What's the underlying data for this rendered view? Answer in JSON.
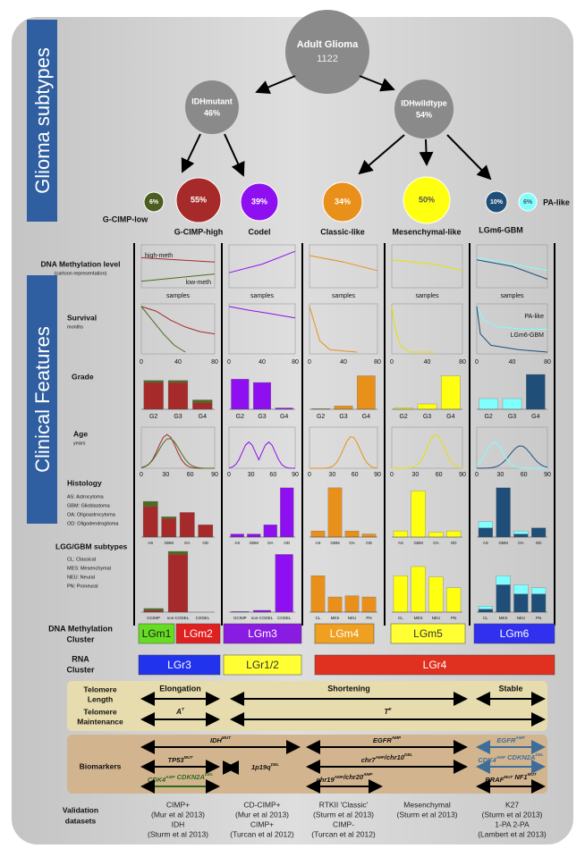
{
  "sidebars": {
    "top": "Glioma subtypes",
    "middle": "Clinical Features"
  },
  "root": {
    "title": "Adult Glioma",
    "count": "1122"
  },
  "branches": [
    {
      "title": "IDHmutant",
      "pct": "46%"
    },
    {
      "title": "IDHwildtype",
      "pct": "54%"
    }
  ],
  "subtypes": [
    {
      "pct": "6%",
      "label": "G-CIMP-low",
      "color": "#4b5d1f"
    },
    {
      "pct": "55%",
      "label": "G-CIMP-high",
      "color": "#a72a2a"
    },
    {
      "pct": "39%",
      "label": "Codel",
      "color": "#8e10f0"
    },
    {
      "pct": "34%",
      "label": "Classic-like",
      "color": "#e8901a"
    },
    {
      "pct": "50%",
      "label": "Mesenchymal-like",
      "color": "#ffff10"
    },
    {
      "pct": "10%",
      "label": "LGm6-GBM",
      "color": "#1f4e79"
    },
    {
      "pct": "6%",
      "label": "PA-like",
      "color": "#80ffff"
    }
  ],
  "row_labels": {
    "methylation": {
      "title": "DNA Methylation level",
      "note": "(cartoon representation)",
      "axis": "samples",
      "high": "high-meth",
      "low": "low-meth"
    },
    "survival": {
      "title": "Survival",
      "unit": "months",
      "ticks": [
        0,
        40,
        80
      ],
      "pa": "PA-like",
      "lgm6": "LGm6-GBM"
    },
    "grade": {
      "title": "Grade",
      "categories": [
        "G2",
        "G3",
        "G4"
      ]
    },
    "age": {
      "title": "Age",
      "unit": "years",
      "ticks": [
        0,
        30,
        60,
        90
      ]
    },
    "histology": {
      "title": "Histology",
      "legend": [
        "AS: Astrocytoma",
        "GBM: Glioblastoma",
        "OA: Oligoastrocytoma",
        "OD: Oligodendroglioma"
      ],
      "categories": [
        "AS",
        "GBM",
        "OA",
        "OD"
      ]
    },
    "lgg": {
      "title": "LGG/GBM subtypes",
      "legend": [
        "CL: Classical",
        "MES: Mesenchymal",
        "NEU: Neural",
        "PN: Proneural"
      ],
      "categories_a": [
        "GCIMP",
        "non-CODEL",
        "CODEL"
      ],
      "categories_b": [
        "CL",
        "MES",
        "NEU",
        "PN"
      ]
    }
  },
  "columns": [
    {
      "grade": [
        {
          "color": "#a72a2a",
          "values": [
            40,
            40,
            10
          ]
        },
        {
          "color": "#4b6d1f",
          "values": [
            3,
            3,
            4
          ]
        }
      ],
      "histology": [
        {
          "color": "#a72a2a",
          "values": [
            50,
            30,
            40,
            20
          ]
        },
        {
          "color": "#4b6d1f",
          "values": [
            8,
            3,
            0,
            0
          ]
        }
      ],
      "lgg": [
        {
          "color": "#a72a2a",
          "values": [
            3,
            95,
            0
          ]
        },
        {
          "color": "#4b6d1f",
          "values": [
            3,
            5,
            0
          ]
        }
      ]
    },
    {
      "grade": [
        {
          "color": "#8e10f0",
          "values": [
            45,
            40,
            2
          ]
        }
      ],
      "histology": [
        {
          "color": "#8e10f0",
          "values": [
            5,
            5,
            20,
            80
          ]
        }
      ],
      "lgg": [
        {
          "color": "#8e10f0",
          "values": [
            1,
            3,
            95
          ]
        }
      ]
    },
    {
      "grade": [
        {
          "color": "#e8901a",
          "values": [
            1,
            5,
            50
          ]
        }
      ],
      "histology": [
        {
          "color": "#e8901a",
          "values": [
            10,
            80,
            10,
            5
          ]
        }
      ],
      "lgg": [
        {
          "color": "#e8901a",
          "values": [
            60,
            25,
            27,
            25
          ]
        }
      ]
    },
    {
      "grade": [
        {
          "color": "#ffff10",
          "values": [
            2,
            8,
            50
          ]
        }
      ],
      "histology": [
        {
          "color": "#ffff10",
          "values": [
            10,
            75,
            8,
            10
          ]
        }
      ],
      "lgg": [
        {
          "color": "#ffff10",
          "values": [
            60,
            75,
            58,
            40
          ]
        }
      ]
    },
    {
      "grade": [
        {
          "color": "#80ffff",
          "values": [
            16,
            16,
            0
          ]
        },
        {
          "color": "#1f4e79",
          "values": [
            0,
            0,
            52
          ]
        }
      ],
      "histology": [
        {
          "color": "#1f4e79",
          "values": [
            15,
            80,
            5,
            15
          ]
        },
        {
          "color": "#80ffff",
          "values": [
            10,
            0,
            5,
            0
          ]
        }
      ],
      "lgg": [
        {
          "color": "#1f4e79",
          "values": [
            5,
            45,
            30,
            30
          ]
        },
        {
          "color": "#80ffff",
          "values": [
            5,
            15,
            15,
            10
          ]
        }
      ]
    }
  ],
  "clusters": {
    "methylation_title": [
      "DNA  Methylation",
      "Cluster"
    ],
    "methylation": [
      {
        "label": "LGm1",
        "color": "#66dd22",
        "text_color": "#222"
      },
      {
        "label": "LGm2",
        "color": "#e02020",
        "text_color": "#fff"
      },
      {
        "label": "LGm3",
        "color": "#8a1be0",
        "text_color": "#fff"
      },
      {
        "label": "LGm4",
        "color": "#f0a020",
        "text_color": "#fff"
      },
      {
        "label": "LGm5",
        "color": "#ffff33",
        "text_color": "#333"
      },
      {
        "label": "LGm6",
        "color": "#3030ee",
        "text_color": "#fff"
      }
    ],
    "rna_title": [
      "RNA",
      "Cluster"
    ],
    "rna": [
      {
        "label": "LGr3",
        "color": "#2233ee",
        "text_color": "#fff"
      },
      {
        "label": "LGr1/2",
        "color": "#ffff33",
        "text_color": "#333"
      },
      {
        "label": "LGr4",
        "color": "#e03020",
        "text_color": "#fff"
      }
    ]
  },
  "telomere": {
    "length_title": [
      "Telomere",
      "Length"
    ],
    "maintenance_title": [
      "Telomere",
      "Maintenance"
    ],
    "length": [
      "Elongation",
      "Shortening",
      "Stable"
    ],
    "maintenance": [
      [
        [
          "ATRX",
          "MUT"
        ]
      ],
      [
        [
          "TERT",
          "UP"
        ]
      ]
    ]
  },
  "biomarkers": {
    "title": "Biomarkers",
    "items": [
      {
        "parts": [
          [
            "IDH",
            "MUT"
          ]
        ]
      },
      {
        "parts": [
          [
            "EGFR",
            "AMP"
          ]
        ]
      },
      {
        "parts": [
          [
            "EGFR",
            "AMP"
          ]
        ]
      },
      {
        "parts": [
          [
            "TP53",
            "MUT"
          ]
        ]
      },
      {
        "parts": [
          [
            "1p19q",
            "DEL"
          ]
        ]
      },
      {
        "parts": [
          [
            "chr7",
            "AMP"
          ],
          [
            "/chr10",
            "DEL"
          ]
        ]
      },
      {
        "parts": [
          [
            "CDK4",
            "AMP"
          ],
          [
            " CDKN2A",
            "DEL"
          ]
        ]
      },
      {
        "parts": [
          [
            "CDK4",
            "AMP"
          ],
          [
            " CDKN2A",
            "DEL"
          ]
        ]
      },
      {
        "parts": [
          [
            "chr19",
            "AMP"
          ],
          [
            "/chr20",
            "AMP"
          ]
        ]
      },
      {
        "parts": [
          [
            "BRAF",
            "MUT"
          ],
          [
            " NF1",
            "MUT"
          ]
        ]
      }
    ]
  },
  "validation": {
    "title": [
      "Validation",
      "datasets"
    ],
    "columns": [
      [
        "CIMP+",
        "(Mur et al 2013)",
        "IDH",
        "(Sturm et al 2013)"
      ],
      [
        "CD-CIMP+",
        "(Mur et al 2013)",
        "CIMP+",
        "(Turcan et al 2012)"
      ],
      [
        "RTKII 'Classic'",
        "(Sturm et al 2013)",
        "CIMP-",
        "(Turcan et al 2012)"
      ],
      [
        "Mesenchymal",
        "(Sturm et al 2013)"
      ],
      [
        "K27",
        "(Sturm et al 2013)",
        "1-PA 2-PA",
        "(Lambert et al 2013)"
      ]
    ]
  }
}
